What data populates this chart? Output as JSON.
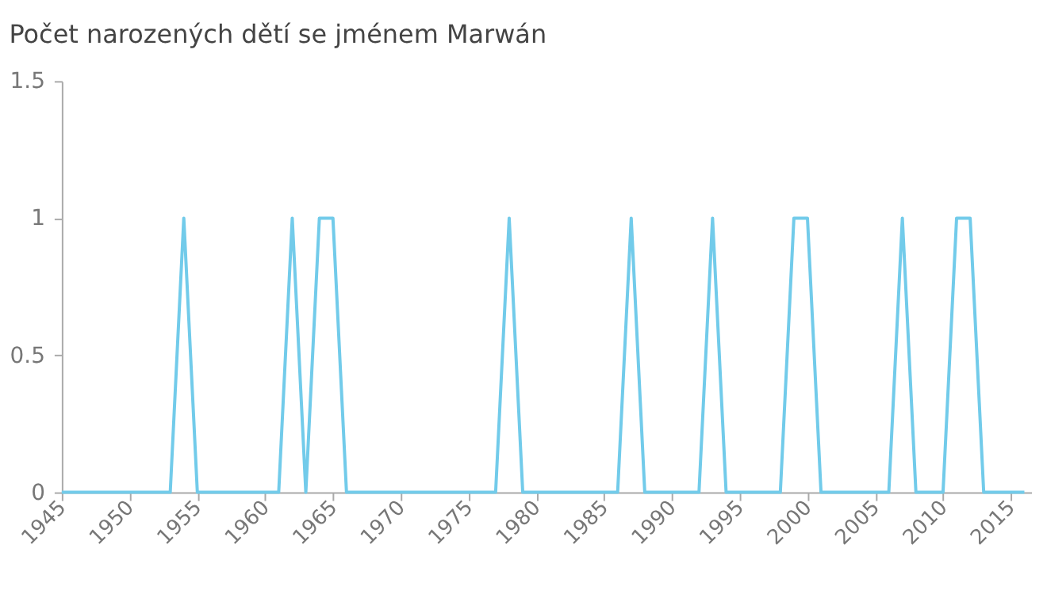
{
  "chart_data": {
    "type": "line",
    "title": "Počet narozených dětí se jménem Marwán",
    "x": [
      1945,
      1946,
      1947,
      1948,
      1949,
      1950,
      1951,
      1952,
      1953,
      1954,
      1955,
      1956,
      1957,
      1958,
      1959,
      1960,
      1961,
      1962,
      1963,
      1964,
      1965,
      1966,
      1967,
      1968,
      1969,
      1970,
      1971,
      1972,
      1973,
      1974,
      1975,
      1976,
      1977,
      1978,
      1979,
      1980,
      1981,
      1982,
      1983,
      1984,
      1985,
      1986,
      1987,
      1988,
      1989,
      1990,
      1991,
      1992,
      1993,
      1994,
      1995,
      1996,
      1997,
      1998,
      1999,
      2000,
      2001,
      2002,
      2003,
      2004,
      2005,
      2006,
      2007,
      2008,
      2009,
      2010,
      2011,
      2012,
      2013,
      2014,
      2015,
      2016
    ],
    "series": [
      {
        "color": "#72cbea",
        "values": [
          0,
          0,
          0,
          0,
          0,
          0,
          0,
          0,
          0,
          1,
          0,
          0,
          0,
          0,
          0,
          0,
          0,
          1,
          0,
          1,
          1,
          0,
          0,
          0,
          0,
          0,
          0,
          0,
          0,
          0,
          0,
          0,
          0,
          1,
          0,
          0,
          0,
          0,
          0,
          0,
          0,
          0,
          1,
          0,
          0,
          0,
          0,
          0,
          1,
          0,
          0,
          0,
          0,
          0,
          1,
          1,
          0,
          0,
          0,
          0,
          0,
          0,
          1,
          0,
          0,
          0,
          1,
          1,
          0,
          0,
          0,
          0
        ]
      }
    ],
    "xlim": [
      1945,
      2016.5
    ],
    "xticks": [
      1945,
      1950,
      1955,
      1960,
      1965,
      1970,
      1975,
      1980,
      1985,
      1990,
      1995,
      2000,
      2005,
      2010,
      2015
    ],
    "ylim": [
      0,
      1.5
    ],
    "yticks": [
      0,
      0.5,
      1,
      1.5
    ],
    "grid": false,
    "legend": false
  }
}
